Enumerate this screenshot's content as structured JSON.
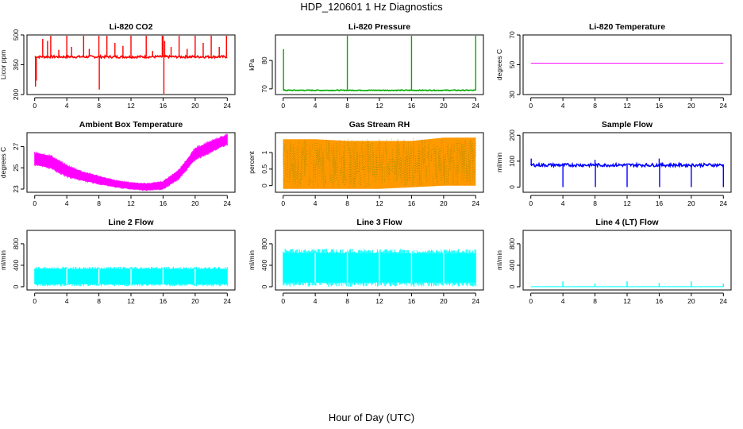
{
  "figure": {
    "title": "HDP_120601  1 Hz Diagnostics",
    "xlabel": "Hour of Day (UTC)"
  },
  "chart_data": [
    {
      "type": "line",
      "title": "Li-820 CO2",
      "ylabel": "Licor ppm",
      "xlim": [
        0,
        24
      ],
      "ylim": [
        200,
        500
      ],
      "xticks": [
        0,
        4,
        8,
        12,
        16,
        20,
        24
      ],
      "yticks": [
        200,
        350,
        500
      ],
      "color": "#ff0000",
      "baseline": 390,
      "noise": 6,
      "spikes": [
        {
          "x": 0.1,
          "y": 240
        },
        {
          "x": 0.2,
          "y": 270
        },
        {
          "x": 1.0,
          "y": 480
        },
        {
          "x": 1.6,
          "y": 470
        },
        {
          "x": 2.0,
          "y": 500
        },
        {
          "x": 3.0,
          "y": 425
        },
        {
          "x": 4.0,
          "y": 500
        },
        {
          "x": 4.6,
          "y": 440
        },
        {
          "x": 6.1,
          "y": 500
        },
        {
          "x": 6.8,
          "y": 430
        },
        {
          "x": 8.0,
          "y": 500
        },
        {
          "x": 8.05,
          "y": 225
        },
        {
          "x": 9.0,
          "y": 500
        },
        {
          "x": 10.0,
          "y": 460
        },
        {
          "x": 11.0,
          "y": 445
        },
        {
          "x": 12.0,
          "y": 500
        },
        {
          "x": 13.9,
          "y": 500
        },
        {
          "x": 14.7,
          "y": 420
        },
        {
          "x": 15.9,
          "y": 500
        },
        {
          "x": 16.0,
          "y": 500
        },
        {
          "x": 16.1,
          "y": 200
        },
        {
          "x": 16.2,
          "y": 470
        },
        {
          "x": 17.0,
          "y": 440
        },
        {
          "x": 18.0,
          "y": 500
        },
        {
          "x": 19.0,
          "y": 430
        },
        {
          "x": 20.0,
          "y": 500
        },
        {
          "x": 21.0,
          "y": 460
        },
        {
          "x": 22.0,
          "y": 500
        },
        {
          "x": 23.0,
          "y": 440
        },
        {
          "x": 23.9,
          "y": 500
        }
      ]
    },
    {
      "type": "line",
      "title": "Li-820 Pressure",
      "ylabel": "kPa",
      "xlim": [
        0,
        24
      ],
      "ylim": [
        68,
        89
      ],
      "xticks": [
        0,
        4,
        8,
        12,
        16,
        20,
        24
      ],
      "yticks": [
        70,
        80
      ],
      "color": "#00aa00",
      "baseline": 69.5,
      "noise": 0.15,
      "spikes": [
        {
          "x": 0.05,
          "y": 84
        },
        {
          "x": 8.0,
          "y": 89
        },
        {
          "x": 16.0,
          "y": 89
        },
        {
          "x": 24.0,
          "y": 89
        }
      ]
    },
    {
      "type": "line",
      "title": "Li-820 Temperature",
      "ylabel": "degrees C",
      "xlim": [
        0,
        24
      ],
      "ylim": [
        30,
        70
      ],
      "xticks": [
        0,
        4,
        8,
        12,
        16,
        20,
        24
      ],
      "yticks": [
        30,
        50,
        70
      ],
      "color": "#ff00ff",
      "baseline": 51,
      "noise": 0,
      "spikes": []
    },
    {
      "type": "band",
      "title": "Ambient Box Temperature",
      "ylabel": "degrees C",
      "xlim": [
        0,
        24
      ],
      "ylim": [
        22.7,
        28.3
      ],
      "xticks": [
        0,
        4,
        8,
        12,
        16,
        20,
        24
      ],
      "yticks": [
        23,
        25,
        27
      ],
      "color": "#ff00ff",
      "x": [
        0,
        2,
        4,
        6,
        8,
        10,
        12,
        14,
        16,
        18,
        20,
        22,
        23,
        24
      ],
      "lower": [
        25.3,
        25.0,
        24.2,
        23.8,
        23.5,
        23.2,
        23.0,
        22.9,
        23.0,
        24.0,
        25.8,
        26.5,
        26.9,
        27.2
      ],
      "upper": [
        26.4,
        26.1,
        25.2,
        24.6,
        24.2,
        23.8,
        23.6,
        23.5,
        23.7,
        24.8,
        26.8,
        27.5,
        27.8,
        28.1
      ]
    },
    {
      "type": "band",
      "title": "Gas Stream RH",
      "ylabel": "percent",
      "xlim": [
        0,
        24
      ],
      "ylim": [
        -0.2,
        1.6
      ],
      "xticks": [
        0,
        4,
        8,
        12,
        16,
        20,
        24
      ],
      "yticks": [
        0.0,
        0.5,
        1.0
      ],
      "color": "#ff9900",
      "secondary_color": "#8b8b00",
      "x": [
        0,
        4,
        8,
        12,
        16,
        20,
        24
      ],
      "lower": [
        -0.1,
        -0.1,
        -0.1,
        -0.1,
        -0.05,
        0.0,
        0.0
      ],
      "upper": [
        1.4,
        1.4,
        1.35,
        1.35,
        1.35,
        1.45,
        1.45
      ]
    },
    {
      "type": "line",
      "title": "Sample Flow",
      "ylabel": "ml/min",
      "xlim": [
        0,
        24
      ],
      "ylim": [
        -20,
        210
      ],
      "xticks": [
        0,
        4,
        8,
        12,
        16,
        20,
        24
      ],
      "yticks": [
        0,
        100,
        200
      ],
      "color": "#0000ff",
      "baseline": 85,
      "noise": 6,
      "spikes": [
        {
          "x": 0.05,
          "y": 110
        },
        {
          "x": 4.0,
          "y": 0
        },
        {
          "x": 8.0,
          "y": 105
        },
        {
          "x": 8.05,
          "y": 0
        },
        {
          "x": 12.0,
          "y": 0
        },
        {
          "x": 16.0,
          "y": 110
        },
        {
          "x": 16.05,
          "y": 0
        },
        {
          "x": 20.0,
          "y": 0
        },
        {
          "x": 24.0,
          "y": 0
        }
      ]
    },
    {
      "type": "band",
      "title": "Line 2 Flow",
      "ylabel": "ml/min",
      "xlim": [
        0,
        24
      ],
      "ylim": [
        -60,
        1050
      ],
      "xticks": [
        0,
        4,
        8,
        12,
        16,
        20,
        24
      ],
      "yticks": [
        0,
        400,
        800
      ],
      "color": "#00ffff",
      "x": [
        0,
        24
      ],
      "lower": [
        50,
        50
      ],
      "upper": [
        330,
        330
      ],
      "gaps": [
        4,
        8,
        12,
        16,
        20
      ]
    },
    {
      "type": "band",
      "title": "Line 3 Flow",
      "ylabel": "ml/min",
      "xlim": [
        0,
        24
      ],
      "ylim": [
        -60,
        1050
      ],
      "xticks": [
        0,
        4,
        8,
        12,
        16,
        20,
        24
      ],
      "yticks": [
        0,
        400,
        800
      ],
      "color": "#00ffff",
      "x": [
        0,
        24
      ],
      "lower": [
        80,
        80
      ],
      "upper": [
        630,
        620
      ],
      "gaps": [
        4,
        8,
        12,
        16,
        20
      ]
    },
    {
      "type": "line",
      "title": "Line 4 (LT) Flow",
      "ylabel": "ml/min",
      "xlim": [
        0,
        24
      ],
      "ylim": [
        -60,
        1050
      ],
      "xticks": [
        0,
        4,
        8,
        12,
        16,
        20,
        24
      ],
      "yticks": [
        0,
        400,
        800
      ],
      "color": "#00ffff",
      "baseline": 0,
      "noise": 0,
      "spikes": [
        {
          "x": 4.0,
          "y": 100
        },
        {
          "x": 8.0,
          "y": 60
        },
        {
          "x": 12.0,
          "y": 100
        },
        {
          "x": 16.0,
          "y": 70
        },
        {
          "x": 20.0,
          "y": 100
        },
        {
          "x": 24.0,
          "y": 60
        }
      ]
    }
  ]
}
